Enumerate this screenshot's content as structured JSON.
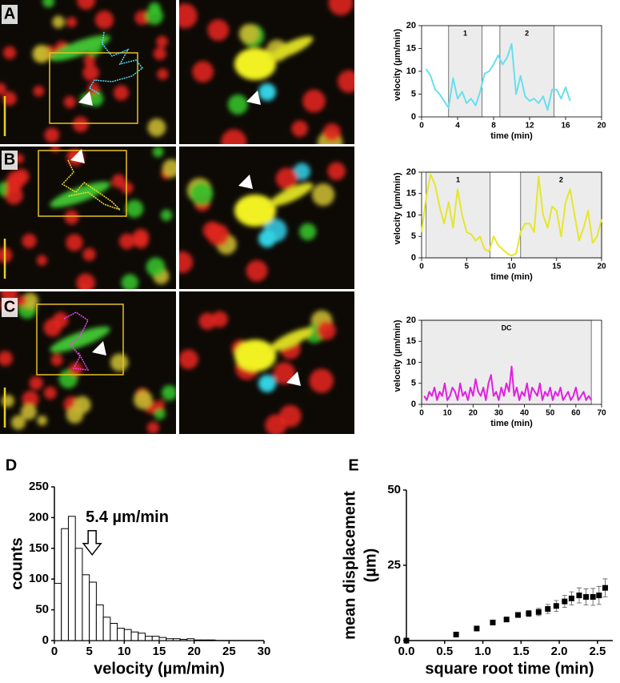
{
  "chart_data": [
    {
      "type": "line",
      "panel": "A",
      "xlabel": "time (min)",
      "ylabel": "velocity (µm/min)",
      "xlim": [
        0,
        20
      ],
      "xticks": [
        0,
        4,
        8,
        12,
        16,
        20
      ],
      "ylim": [
        0,
        20
      ],
      "yticks": [
        0,
        5,
        10,
        15,
        20
      ],
      "regions": [
        {
          "label": "1",
          "x": [
            3,
            6.7
          ]
        },
        {
          "label": "2",
          "x": [
            8.7,
            14.7
          ]
        }
      ],
      "color": "#66e0ee",
      "x": [
        0.5,
        1,
        1.5,
        2,
        2.5,
        3,
        3.5,
        4,
        4.5,
        5,
        5.5,
        6,
        6.5,
        7,
        7.5,
        8,
        8.5,
        9,
        9.5,
        10,
        10.5,
        11,
        11.5,
        12,
        12.5,
        13,
        13.5,
        14,
        14.5,
        15,
        15.5,
        16,
        16.5
      ],
      "values": [
        10.5,
        9,
        6,
        5,
        3.5,
        2,
        8.5,
        4,
        5.5,
        3,
        4,
        2.5,
        5.5,
        9.5,
        10,
        11.5,
        13.5,
        11.5,
        13,
        16,
        5,
        9,
        4.5,
        3.5,
        4,
        3,
        4.5,
        1.5,
        6,
        6,
        4,
        6.5,
        3.5
      ]
    },
    {
      "type": "line",
      "panel": "B",
      "xlabel": "time (min)",
      "ylabel": "velocity (µm/min)",
      "xlim": [
        0,
        20
      ],
      "xticks": [
        0,
        5,
        10,
        15,
        20
      ],
      "ylim": [
        0,
        20
      ],
      "yticks": [
        0,
        5,
        10,
        15,
        20
      ],
      "regions": [
        {
          "label": "1",
          "x": [
            0.5,
            7.6
          ]
        },
        {
          "label": "2",
          "x": [
            11,
            20
          ]
        }
      ],
      "color": "#e6e62a",
      "x": [
        0,
        0.5,
        1,
        1.5,
        2,
        2.5,
        3,
        3.5,
        4,
        4.5,
        5,
        5.5,
        6,
        6.5,
        7,
        7.5,
        8,
        8.5,
        9,
        9.5,
        10,
        10.5,
        11,
        11.5,
        12,
        12.5,
        13,
        13.5,
        14,
        14.5,
        15,
        15.5,
        16,
        16.5,
        17,
        17.5,
        18,
        18.5,
        19,
        19.5,
        20
      ],
      "values": [
        6,
        14,
        19.5,
        17,
        12,
        8,
        13,
        7,
        16,
        10,
        6,
        5.5,
        4,
        5,
        2,
        1.5,
        5,
        3,
        2,
        1,
        0.5,
        1,
        6,
        8,
        8,
        6,
        19,
        10,
        7,
        12,
        11,
        5,
        13,
        16,
        10,
        4,
        7,
        11,
        3.5,
        5,
        9
      ]
    },
    {
      "type": "line",
      "panel": "C",
      "xlabel": "time (min)",
      "ylabel": "velocity (µm/min)",
      "xlim": [
        0,
        70
      ],
      "xticks": [
        0,
        10,
        20,
        30,
        40,
        50,
        60,
        70
      ],
      "ylim": [
        0,
        20
      ],
      "yticks": [
        0,
        5,
        10,
        15,
        20
      ],
      "regions": [
        {
          "label": "DC",
          "x": [
            0,
            66
          ]
        }
      ],
      "color": "#e020e0",
      "x": [
        1,
        2,
        3,
        4,
        5,
        6,
        7,
        8,
        9,
        10,
        11,
        12,
        13,
        14,
        15,
        16,
        17,
        18,
        19,
        20,
        21,
        22,
        23,
        24,
        25,
        26,
        27,
        28,
        29,
        30,
        31,
        32,
        33,
        34,
        35,
        36,
        37,
        38,
        39,
        40,
        41,
        42,
        43,
        44,
        45,
        46,
        47,
        48,
        49,
        50,
        51,
        52,
        53,
        54,
        55,
        56,
        57,
        58,
        59,
        60,
        61,
        62,
        63,
        64,
        65,
        66
      ],
      "values": [
        2,
        1,
        3,
        2,
        4,
        1,
        3,
        2,
        5,
        1,
        2,
        4,
        3,
        1,
        5,
        2,
        3,
        1,
        4,
        2,
        6,
        3,
        2,
        4,
        1,
        5,
        7,
        2,
        3,
        1,
        4,
        2,
        5,
        3,
        9,
        2,
        4,
        1,
        3,
        2,
        5,
        1,
        4,
        3,
        2,
        5,
        1,
        3,
        2,
        4,
        1,
        3,
        2,
        4,
        1,
        2,
        3,
        1,
        2,
        4,
        1,
        2,
        3,
        1,
        2,
        1
      ]
    },
    {
      "type": "histogram",
      "panel": "D",
      "xlabel": "velocity (µm/min)",
      "ylabel": "counts",
      "xlim": [
        0,
        30
      ],
      "xticks": [
        0,
        5,
        10,
        15,
        20,
        25,
        30
      ],
      "ylim": [
        0,
        250
      ],
      "yticks": [
        0,
        50,
        100,
        150,
        200,
        250
      ],
      "bins": [
        0,
        1,
        2,
        3,
        4,
        5,
        6,
        7,
        8,
        9,
        10,
        11,
        12,
        13,
        14,
        15,
        16,
        17,
        18,
        19,
        20,
        21,
        22,
        23,
        24,
        25,
        26,
        27,
        28,
        29,
        30
      ],
      "values": [
        93,
        182,
        202,
        150,
        107,
        95,
        58,
        38,
        28,
        20,
        18,
        14,
        12,
        7,
        7,
        5,
        3,
        3,
        2,
        3,
        1,
        1,
        1,
        0,
        0,
        0,
        0,
        0,
        0,
        0
      ],
      "annotation": {
        "text": "5.4 µm/min",
        "x": 5.4
      }
    },
    {
      "type": "scatter",
      "panel": "E",
      "xlabel": "square root time (min)",
      "ylabel": [
        "mean displacement",
        "(µm)"
      ],
      "xlim": [
        0,
        2.7
      ],
      "xticks": [
        {
          "value": 0,
          "label": "0.0"
        },
        {
          "value": 0.5,
          "label": "0.5"
        },
        {
          "value": 1,
          "label": "1.0"
        },
        {
          "value": 1.5,
          "label": "1.5"
        },
        {
          "value": 2,
          "label": "2.0"
        },
        {
          "value": 2.5,
          "label": "2.5"
        }
      ],
      "ylim": [
        0,
        50
      ],
      "yticks": [
        0,
        25,
        50
      ],
      "x": [
        0,
        0.65,
        0.92,
        1.13,
        1.31,
        1.46,
        1.6,
        1.73,
        1.85,
        1.96,
        2.07,
        2.16,
        2.26,
        2.35,
        2.44,
        2.52,
        2.6
      ],
      "values": [
        0,
        2,
        4,
        6,
        7,
        8.5,
        9,
        9.5,
        10.5,
        11.5,
        13,
        14,
        15,
        14.5,
        14.5,
        15,
        17.5
      ],
      "errors": [
        0,
        0.3,
        0.4,
        0.5,
        0.6,
        0.8,
        1,
        1.2,
        1.5,
        1.8,
        2,
        2.2,
        2.5,
        2.7,
        2.8,
        3,
        3
      ]
    }
  ]
}
